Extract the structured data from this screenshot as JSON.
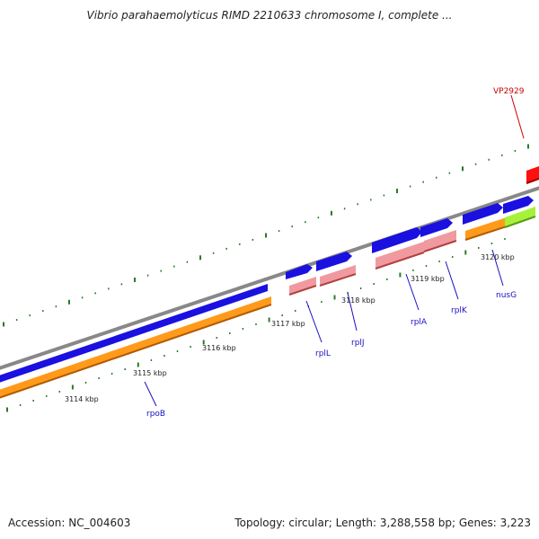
{
  "title": "Vibrio parahaemolyticus RIMD 2210633 chromosome I, complete ...",
  "footer": {
    "accession_label": "Accession: NC_004603",
    "summary": "Topology: circular; Length: 3,288,558 bp; Genes: 3,223"
  },
  "colors": {
    "background": "#ffffff",
    "ruler_ticks": "#2a7a2a",
    "backbone": "#888888",
    "protein_strand": "#1a10e0",
    "gene_orange": "#ff9a1a",
    "gene_pink": "#f09aa0",
    "gene_lime": "#a6f23a",
    "highlight_red": "#ff1010",
    "label_blue": "#1a10c0",
    "label_red": "#cc0000"
  },
  "position_labels": [
    "3114 kbp",
    "3115 kbp",
    "3116 kbp",
    "3117 kbp",
    "3118 kbp",
    "3119 kbp",
    "3120 kbp"
  ],
  "gene_labels": [
    {
      "name": "rpoB",
      "color": "blue"
    },
    {
      "name": "rplL",
      "color": "blue"
    },
    {
      "name": "rplJ",
      "color": "blue"
    },
    {
      "name": "rplA",
      "color": "blue"
    },
    {
      "name": "rplK",
      "color": "blue"
    },
    {
      "name": "nusG",
      "color": "blue"
    },
    {
      "name": "VP2929",
      "color": "red"
    }
  ]
}
